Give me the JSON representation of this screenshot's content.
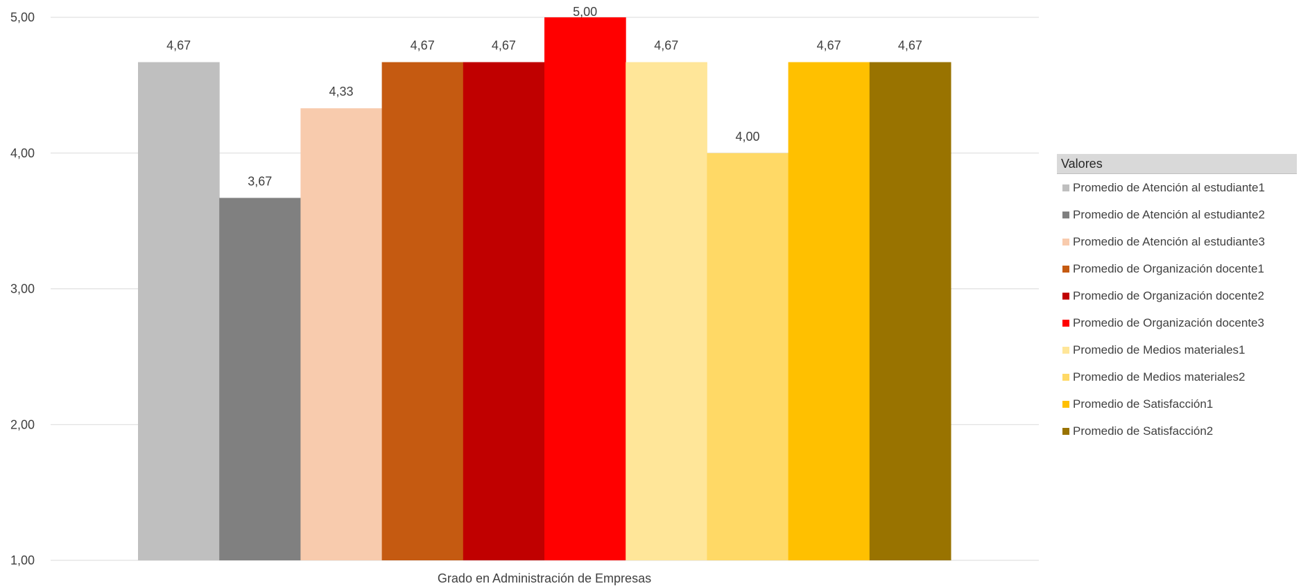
{
  "chart_data": {
    "type": "bar",
    "categories": [
      "Grado en Administración de Empresas"
    ],
    "ylim": [
      1,
      5
    ],
    "yticks": [
      "1,00",
      "2,00",
      "3,00",
      "4,00",
      "5,00"
    ],
    "grid": true,
    "legend_position": "right",
    "legend_title": "Valores",
    "series": [
      {
        "name": "Promedio de Atención al estudiante1",
        "values": [
          4.67
        ],
        "label": "4,67",
        "color": "#bfbfbf"
      },
      {
        "name": "Promedio de Atención al estudiante2",
        "values": [
          3.67
        ],
        "label": "3,67",
        "color": "#808080"
      },
      {
        "name": "Promedio de Atención al estudiante3",
        "values": [
          4.33
        ],
        "label": "4,33",
        "color": "#f8cbad"
      },
      {
        "name": "Promedio de Organización docente1",
        "values": [
          4.67
        ],
        "label": "4,67",
        "color": "#c55a11"
      },
      {
        "name": "Promedio de Organización docente2",
        "values": [
          4.67
        ],
        "label": "4,67",
        "color": "#c00000"
      },
      {
        "name": "Promedio de Organización docente3",
        "values": [
          5.0
        ],
        "label": "5,00",
        "color": "#ff0000"
      },
      {
        "name": "Promedio de Medios materiales1",
        "values": [
          4.67
        ],
        "label": "4,67",
        "color": "#ffe699"
      },
      {
        "name": "Promedio de Medios materiales2",
        "values": [
          4.0
        ],
        "label": "4,00",
        "color": "#ffd966"
      },
      {
        "name": "Promedio de Satisfacción1",
        "values": [
          4.67
        ],
        "label": "4,67",
        "color": "#ffc000"
      },
      {
        "name": "Promedio de Satisfacción2",
        "values": [
          4.67
        ],
        "label": "4,67",
        "color": "#997300"
      }
    ]
  }
}
